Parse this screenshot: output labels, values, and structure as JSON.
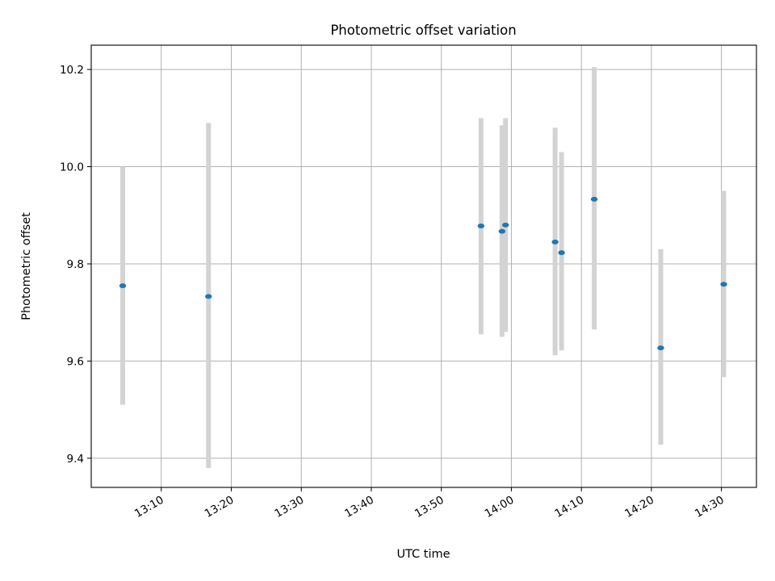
{
  "chart_data": {
    "type": "scatter",
    "title": "Photometric offset variation",
    "xlabel": "UTC time",
    "ylabel": "Photometric offset",
    "grid": true,
    "x_ticks": [
      "13:10",
      "13:20",
      "13:30",
      "13:40",
      "13:50",
      "14:00",
      "14:10",
      "14:20",
      "14:30"
    ],
    "y_ticks": [
      "9.4",
      "9.6",
      "9.8",
      "10.0",
      "10.2"
    ],
    "xlim": [
      "13:00",
      "14:35"
    ],
    "ylim": [
      9.34,
      10.25
    ],
    "colors": {
      "point": "#1f77b4",
      "errorbar": "#d3d3d3",
      "grid": "#b0b0b0"
    },
    "points": [
      {
        "x": "13:04:30",
        "y": 9.755,
        "y_low": 9.51,
        "y_high": 10.0
      },
      {
        "x": "13:16:45",
        "y": 9.733,
        "y_low": 9.38,
        "y_high": 10.09
      },
      {
        "x": "13:55:40",
        "y": 9.878,
        "y_low": 9.655,
        "y_high": 10.1
      },
      {
        "x": "13:58:40",
        "y": 9.867,
        "y_low": 9.65,
        "y_high": 10.085
      },
      {
        "x": "13:59:10",
        "y": 9.88,
        "y_low": 9.66,
        "y_high": 10.1
      },
      {
        "x": "14:06:15",
        "y": 9.845,
        "y_low": 9.612,
        "y_high": 10.08
      },
      {
        "x": "14:07:10",
        "y": 9.823,
        "y_low": 9.622,
        "y_high": 10.03
      },
      {
        "x": "14:11:50",
        "y": 9.933,
        "y_low": 9.665,
        "y_high": 10.205
      },
      {
        "x": "14:21:20",
        "y": 9.627,
        "y_low": 9.428,
        "y_high": 9.83
      },
      {
        "x": "14:30:20",
        "y": 9.758,
        "y_low": 9.567,
        "y_high": 9.95
      }
    ]
  }
}
